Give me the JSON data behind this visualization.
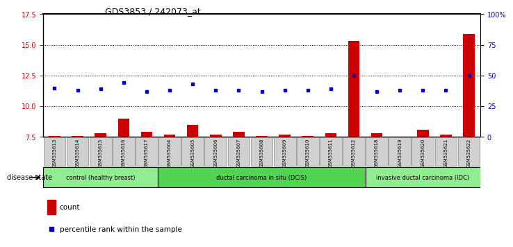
{
  "title": "GDS3853 / 242073_at",
  "samples": [
    "GSM535613",
    "GSM535614",
    "GSM535615",
    "GSM535616",
    "GSM535617",
    "GSM535604",
    "GSM535605",
    "GSM535606",
    "GSM535607",
    "GSM535608",
    "GSM535609",
    "GSM535610",
    "GSM535611",
    "GSM535612",
    "GSM535618",
    "GSM535619",
    "GSM535620",
    "GSM535621",
    "GSM535622"
  ],
  "count_values": [
    7.6,
    7.6,
    7.8,
    9.0,
    7.9,
    7.7,
    8.5,
    7.7,
    7.9,
    7.6,
    7.7,
    7.6,
    7.8,
    15.3,
    7.8,
    7.5,
    8.1,
    7.7,
    15.9
  ],
  "percentile_values": [
    11.5,
    11.3,
    11.4,
    11.9,
    11.2,
    11.3,
    11.8,
    11.3,
    11.3,
    11.2,
    11.3,
    11.3,
    11.4,
    12.5,
    11.2,
    11.3,
    11.3,
    11.3,
    12.5
  ],
  "ylim_left": [
    7.5,
    17.5
  ],
  "ylim_right": [
    0,
    100
  ],
  "yticks_left": [
    7.5,
    10.0,
    12.5,
    15.0,
    17.5
  ],
  "yticks_right": [
    0,
    25,
    50,
    75,
    100
  ],
  "ytick_labels_right": [
    "0",
    "25",
    "50",
    "75",
    "100%"
  ],
  "groups": [
    {
      "label": "control (healthy breast)",
      "start": 0,
      "end": 5,
      "color": "#90EE90"
    },
    {
      "label": "ductal carcinoma in situ (DCIS)",
      "start": 5,
      "end": 14,
      "color": "#52D452"
    },
    {
      "label": "invasive ductal carcinoma (IDC)",
      "start": 14,
      "end": 19,
      "color": "#90EE90"
    }
  ],
  "bar_color": "#CC0000",
  "dot_color": "#0000CC",
  "bg_color": "#FFFFFF",
  "disease_state_label": "disease state",
  "legend_count": "count",
  "legend_percentile": "percentile rank within the sample"
}
